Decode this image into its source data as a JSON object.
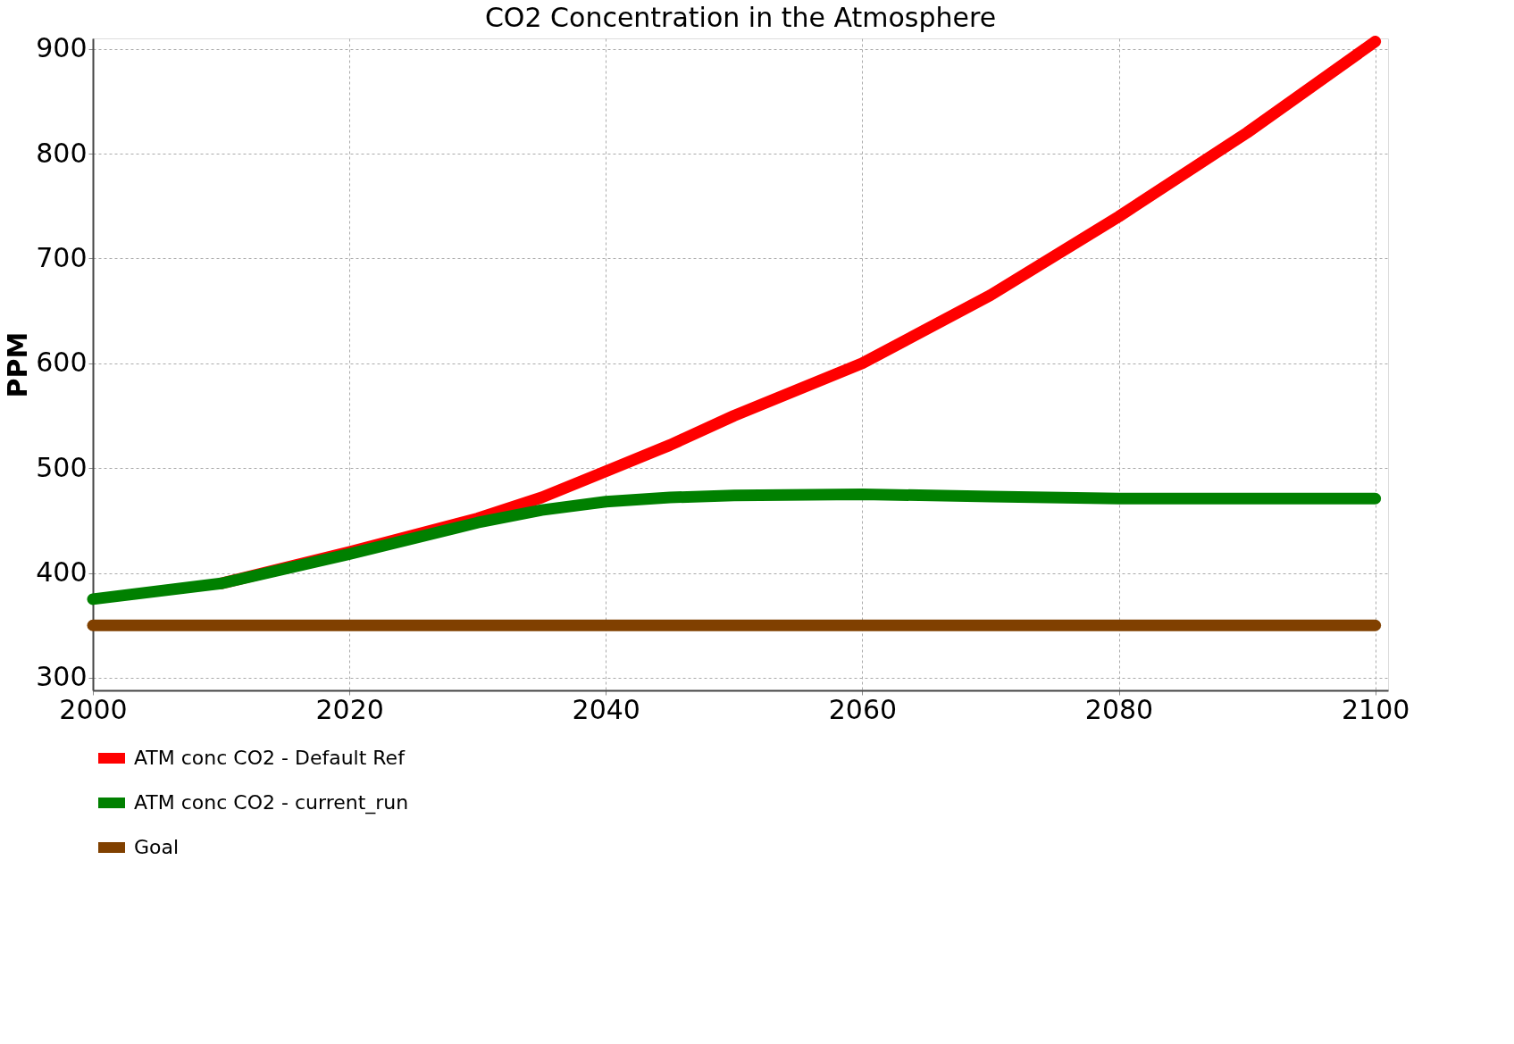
{
  "chart_data": {
    "type": "line",
    "title": "CO2 Concentration in the Atmosphere",
    "ylabel": "PPM",
    "x": [
      2000,
      2010,
      2020,
      2030,
      2035,
      2040,
      2045,
      2050,
      2060,
      2070,
      2080,
      2090,
      2100
    ],
    "series": [
      {
        "name": "ATM conc CO2 - Default Ref",
        "color": "#ff0000",
        "values": [
          null,
          390,
          420,
          452,
          472,
          497,
          522,
          550,
          600,
          665,
          740,
          820,
          907
        ]
      },
      {
        "name": "ATM conc CO2 - current_run",
        "color": "#008000",
        "values": [
          375,
          390,
          418,
          448,
          460,
          468,
          472,
          474,
          475,
          473,
          471,
          471,
          471
        ]
      },
      {
        "name": "Goal",
        "color": "#804000",
        "values": [
          350,
          350,
          350,
          350,
          350,
          350,
          350,
          350,
          350,
          350,
          350,
          350,
          350
        ]
      }
    ],
    "xlim": [
      2000,
      2101
    ],
    "xticks": [
      2000,
      2020,
      2040,
      2060,
      2080,
      2100
    ],
    "ylim": [
      288,
      910
    ],
    "yticks": [
      300,
      400,
      500,
      600,
      700,
      800,
      900
    ],
    "grid": true,
    "legend": "bottom",
    "marker": "none",
    "line_style": "solid"
  }
}
